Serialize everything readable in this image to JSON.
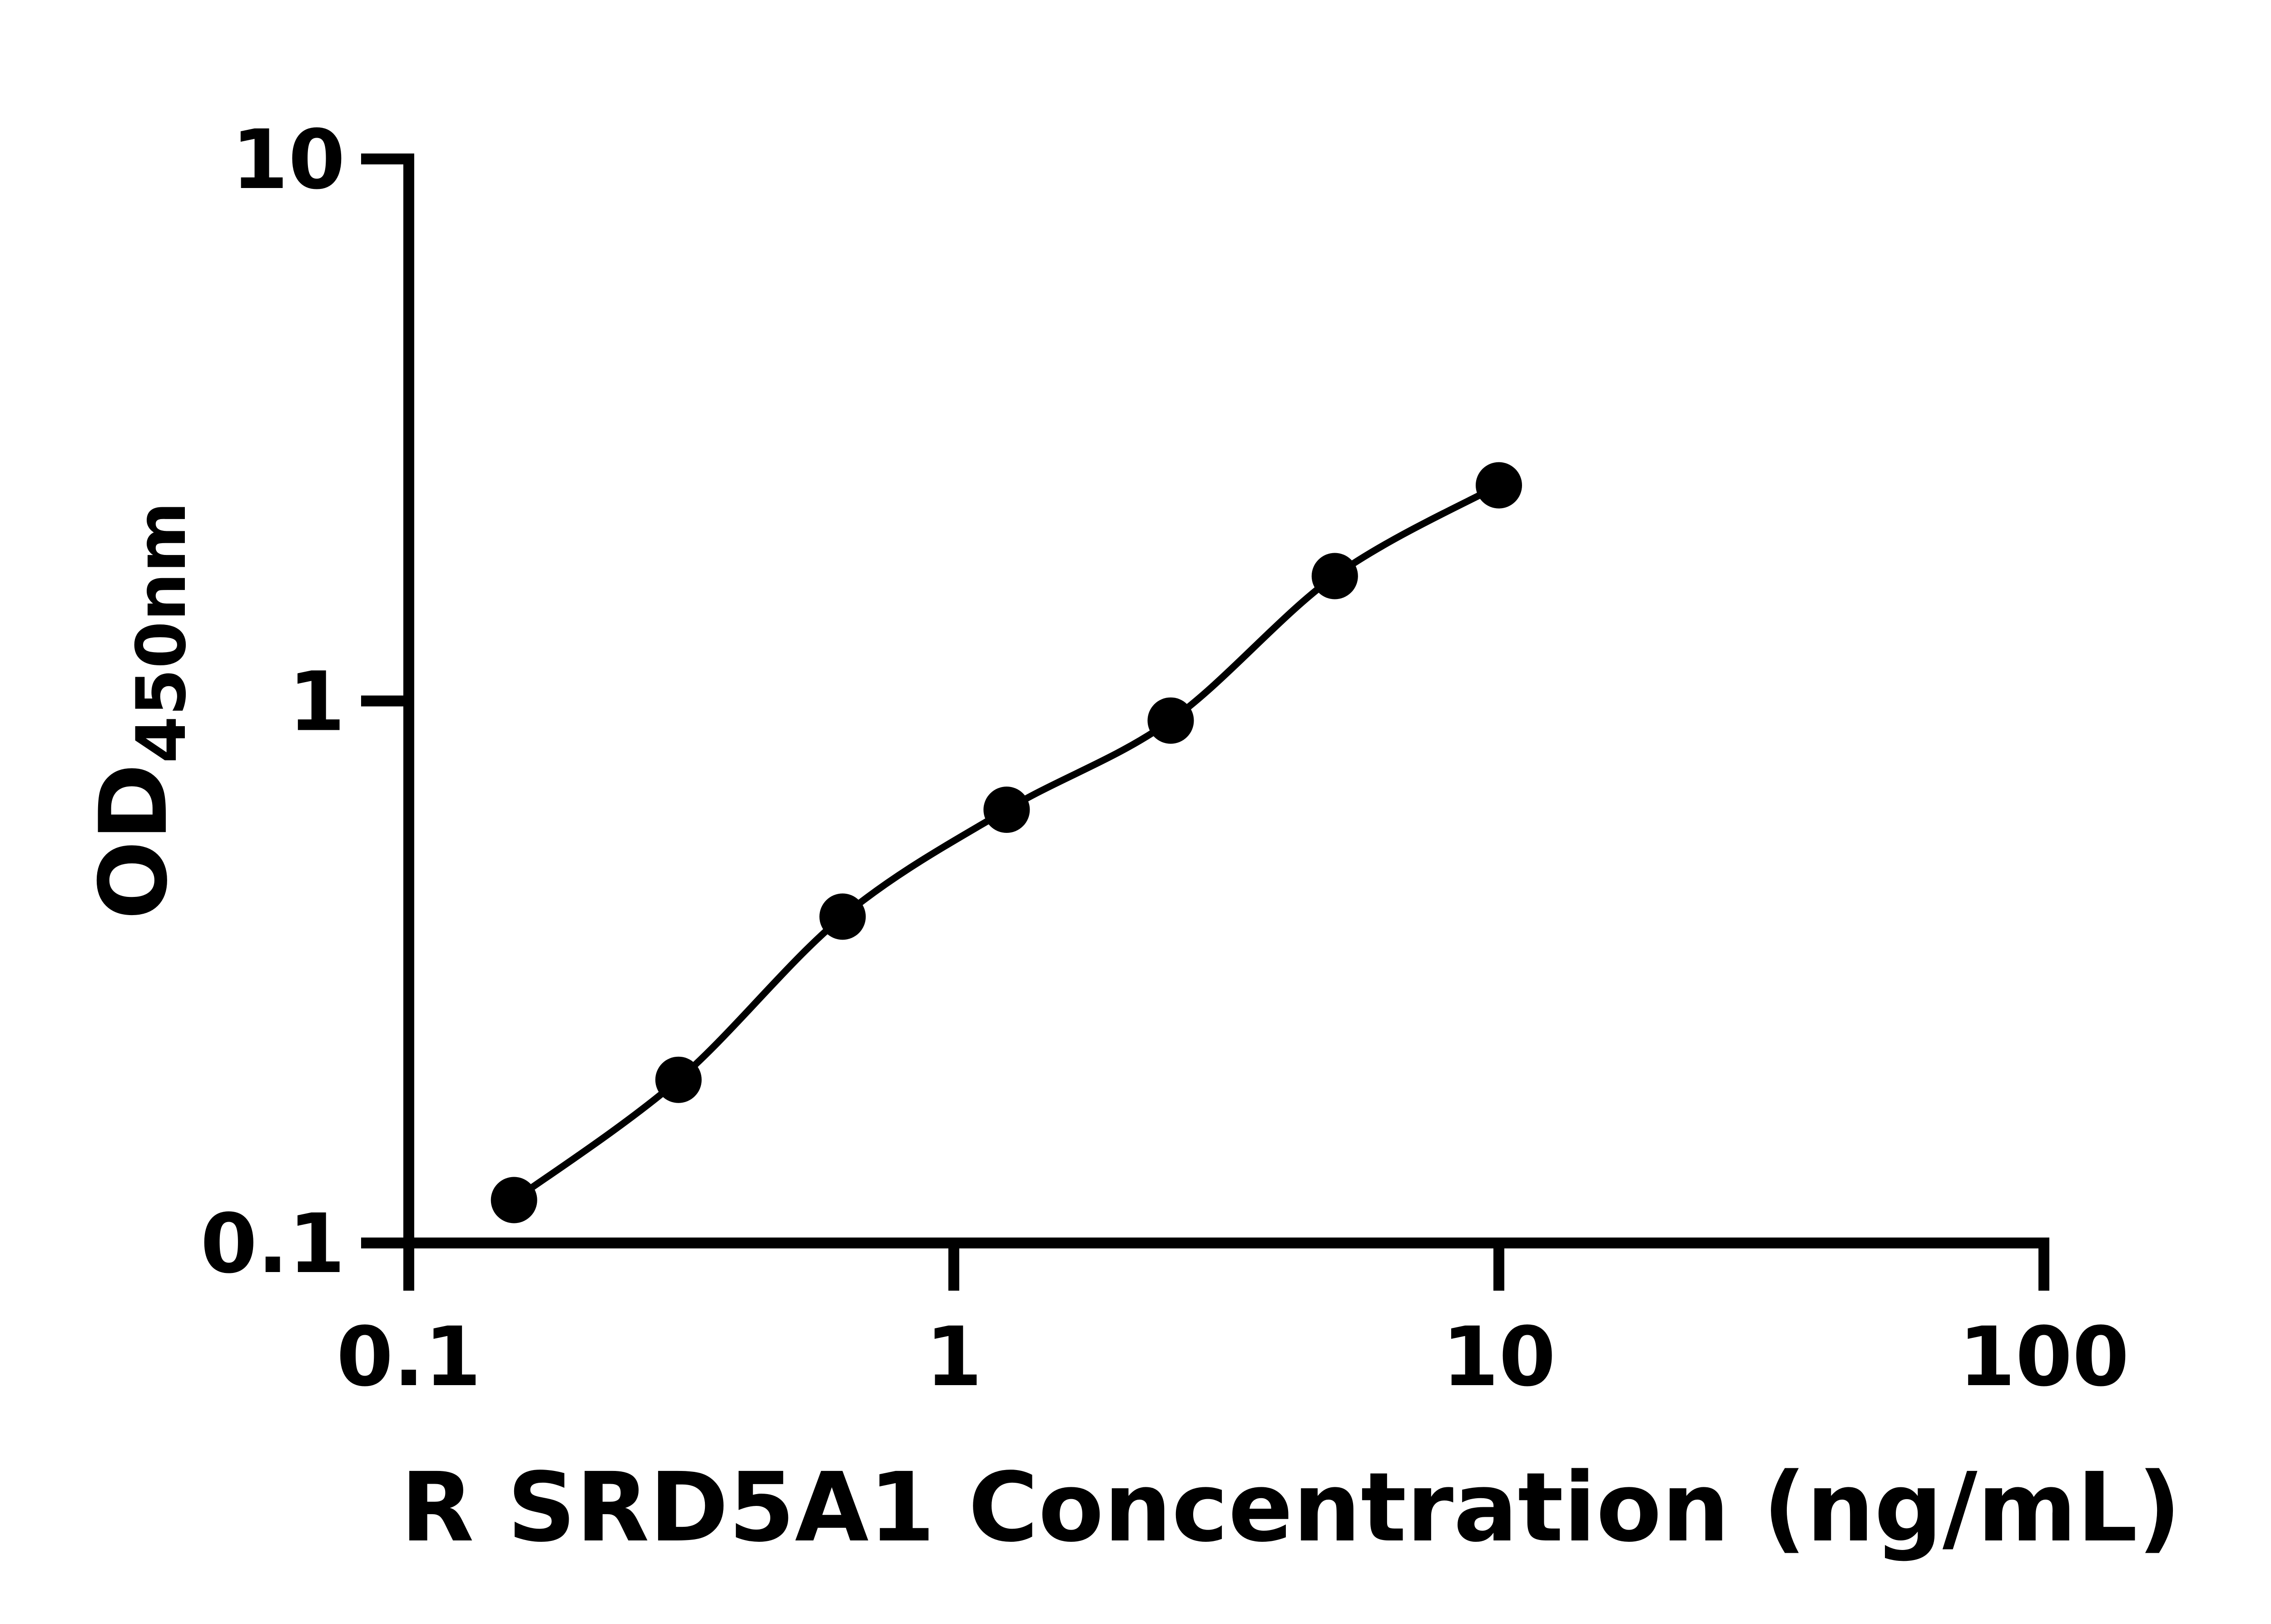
{
  "chart_data": {
    "type": "scatter",
    "subtype": "line-with-markers",
    "title": "",
    "xlabel": "R SRD5A1 Concentration (ng/mL)",
    "ylabel_main": "OD",
    "ylabel_sub": "450nm",
    "xscale": "log",
    "yscale": "log",
    "xlim": [
      0.1,
      100
    ],
    "ylim": [
      0.1,
      10
    ],
    "grid": false,
    "legend": null,
    "x": [
      0.156,
      0.3125,
      0.625,
      1.25,
      2.5,
      5,
      10
    ],
    "y": [
      0.12,
      0.2,
      0.4,
      0.63,
      0.92,
      1.7,
      2.5
    ],
    "x_ticks": [
      {
        "value": 0.1,
        "label": "0.1"
      },
      {
        "value": 1,
        "label": "1"
      },
      {
        "value": 10,
        "label": "10"
      },
      {
        "value": 100,
        "label": "100"
      }
    ],
    "y_ticks": [
      {
        "value": 0.1,
        "label": "0.1"
      },
      {
        "value": 1,
        "label": "1"
      },
      {
        "value": 10,
        "label": "10"
      }
    ],
    "marker_color": "#000000",
    "line_color": "#000000",
    "axis_color": "#000000",
    "background": "#ffffff"
  }
}
